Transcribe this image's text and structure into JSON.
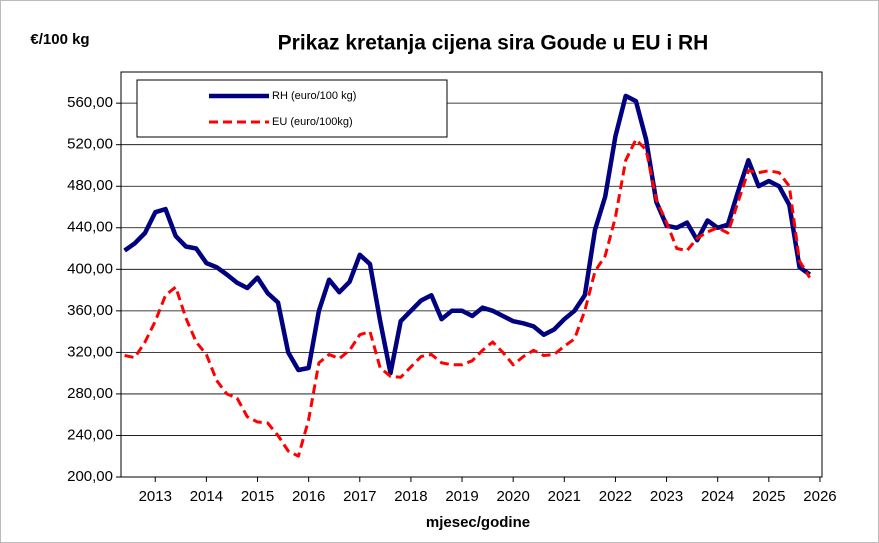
{
  "chart_data": {
    "type": "line",
    "title": "Prikaz kretanja cijena sira Goude u EU i RH",
    "y_label": "€/100 kg",
    "x_label": "mjesec/godine",
    "x": [
      2012.4,
      2012.6,
      2012.8,
      2013.0,
      2013.2,
      2013.4,
      2013.6,
      2013.8,
      2014.0,
      2014.2,
      2014.4,
      2014.6,
      2014.8,
      2015.0,
      2015.2,
      2015.4,
      2015.6,
      2015.8,
      2016.0,
      2016.2,
      2016.4,
      2016.6,
      2016.8,
      2017.0,
      2017.2,
      2017.4,
      2017.6,
      2017.8,
      2018.0,
      2018.2,
      2018.4,
      2018.6,
      2018.8,
      2019.0,
      2019.2,
      2019.4,
      2019.6,
      2019.8,
      2020.0,
      2020.2,
      2020.4,
      2020.6,
      2020.8,
      2021.0,
      2021.2,
      2021.4,
      2021.6,
      2021.8,
      2022.0,
      2022.2,
      2022.4,
      2022.6,
      2022.8,
      2023.0,
      2023.2,
      2023.4,
      2023.6,
      2023.8,
      2024.0,
      2024.2,
      2024.4,
      2024.6,
      2024.8,
      2025.0,
      2025.2,
      2025.4,
      2025.6,
      2025.8
    ],
    "series": [
      {
        "name": "RH (euro/100 kg)",
        "color": "#000080",
        "dash": "solid",
        "values": [
          418,
          425,
          435,
          455,
          458,
          432,
          422,
          420,
          406,
          402,
          395,
          387,
          382,
          392,
          377,
          368,
          320,
          303,
          305,
          360,
          390,
          378,
          388,
          414,
          405,
          350,
          300,
          350,
          360,
          370,
          375,
          352,
          360,
          360,
          355,
          363,
          360,
          355,
          350,
          348,
          345,
          337,
          342,
          352,
          360,
          375,
          438,
          470,
          528,
          567,
          562,
          525,
          465,
          442,
          440,
          445,
          428,
          447,
          440,
          443,
          475,
          505,
          480,
          485,
          480,
          462,
          402,
          395
        ]
      },
      {
        "name": "EU (euro/100kg)",
        "color": "#ff0000",
        "dash": "dashed",
        "values": [
          317,
          315,
          330,
          350,
          375,
          383,
          353,
          330,
          318,
          293,
          280,
          276,
          258,
          253,
          252,
          240,
          225,
          220,
          255,
          310,
          318,
          314,
          322,
          337,
          340,
          305,
          297,
          296,
          306,
          316,
          318,
          310,
          308,
          308,
          312,
          322,
          330,
          320,
          308,
          316,
          322,
          317,
          318,
          326,
          333,
          360,
          398,
          413,
          450,
          505,
          525,
          515,
          467,
          445,
          420,
          418,
          430,
          436,
          440,
          435,
          465,
          495,
          493,
          495,
          493,
          480,
          408,
          392
        ]
      }
    ],
    "xlim": [
      2012.33,
      2026.04
    ],
    "xticks": [
      2013,
      2014,
      2015,
      2016,
      2017,
      2018,
      2019,
      2020,
      2021,
      2022,
      2023,
      2024,
      2025,
      2026
    ],
    "ylim": [
      200,
      590
    ],
    "yticks": [
      {
        "value": 200,
        "label": "200,00"
      },
      {
        "value": 240,
        "label": "240,00"
      },
      {
        "value": 280,
        "label": "280,00"
      },
      {
        "value": 320,
        "label": "320,00"
      },
      {
        "value": 360,
        "label": "360,00"
      },
      {
        "value": 400,
        "label": "400,00"
      },
      {
        "value": 440,
        "label": "440,00"
      },
      {
        "value": 480,
        "label": "480,00"
      },
      {
        "value": 520,
        "label": "520,00"
      },
      {
        "value": 560,
        "label": "560,00"
      }
    ],
    "grid": true,
    "legend": "upper left"
  }
}
